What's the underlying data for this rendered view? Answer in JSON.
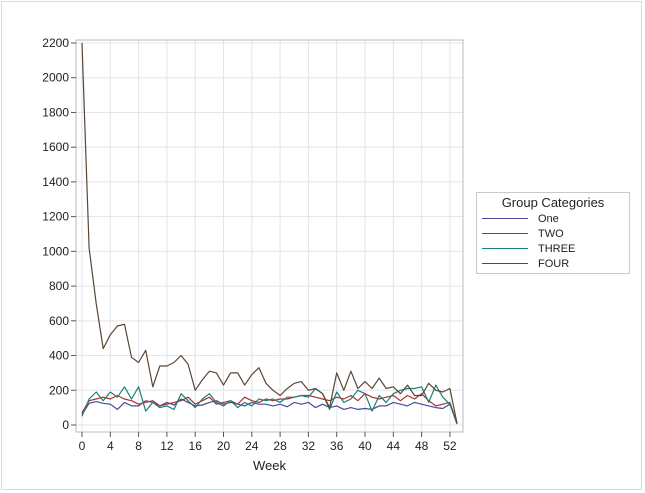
{
  "chart_data": {
    "type": "line",
    "xlabel": "Week",
    "ylabel": "",
    "xlim": [
      0,
      53
    ],
    "ylim": [
      0,
      2200
    ],
    "xticks": [
      0,
      4,
      8,
      12,
      16,
      20,
      24,
      28,
      32,
      36,
      40,
      44,
      48,
      52
    ],
    "yticks": [
      0,
      200,
      400,
      600,
      800,
      1000,
      1200,
      1400,
      1600,
      1800,
      2000,
      2200
    ],
    "grid": true,
    "legend": {
      "title": "Group Categories",
      "position": "right"
    },
    "x": [
      0,
      1,
      2,
      3,
      4,
      5,
      6,
      7,
      8,
      9,
      10,
      11,
      12,
      13,
      14,
      15,
      16,
      17,
      18,
      19,
      20,
      21,
      22,
      23,
      24,
      25,
      26,
      27,
      28,
      29,
      30,
      31,
      32,
      33,
      34,
      35,
      36,
      37,
      38,
      39,
      40,
      41,
      42,
      43,
      44,
      45,
      46,
      47,
      48,
      49,
      50,
      51,
      52,
      53
    ],
    "series": [
      {
        "name": "One",
        "color": "#4a4a9a",
        "values": [
          60,
          125,
          135,
          125,
          120,
          90,
          130,
          110,
          110,
          140,
          130,
          110,
          130,
          115,
          150,
          130,
          110,
          115,
          130,
          140,
          120,
          130,
          120,
          110,
          130,
          120,
          120,
          110,
          120,
          105,
          130,
          120,
          130,
          100,
          120,
          100,
          110,
          90,
          100,
          90,
          95,
          90,
          110,
          110,
          130,
          120,
          110,
          130,
          120,
          110,
          100,
          95,
          120,
          5
        ]
      },
      {
        "name": "TWO",
        "color": "#a83232",
        "values": [
          70,
          140,
          150,
          160,
          150,
          170,
          150,
          140,
          120,
          130,
          140,
          110,
          120,
          130,
          140,
          160,
          120,
          140,
          160,
          120,
          130,
          140,
          120,
          160,
          140,
          130,
          150,
          140,
          150,
          150,
          160,
          170,
          170,
          160,
          150,
          140,
          160,
          150,
          170,
          140,
          180,
          160,
          150,
          160,
          170,
          140,
          170,
          150,
          180,
          140,
          110,
          120,
          130,
          10
        ]
      },
      {
        "name": "THREE",
        "color": "#1f7f73",
        "values": [
          50,
          150,
          190,
          140,
          190,
          160,
          220,
          150,
          220,
          80,
          130,
          100,
          110,
          90,
          180,
          140,
          100,
          150,
          180,
          130,
          110,
          140,
          100,
          130,
          110,
          150,
          140,
          150,
          130,
          160,
          160,
          170,
          160,
          210,
          180,
          90,
          190,
          130,
          150,
          200,
          180,
          80,
          170,
          130,
          180,
          200,
          210,
          210,
          220,
          130,
          230,
          160,
          120,
          10
        ]
      },
      {
        "name": "FOUR",
        "color": "#5a4636",
        "values": [
          2200,
          1020,
          700,
          440,
          520,
          570,
          580,
          390,
          360,
          430,
          220,
          340,
          340,
          360,
          400,
          350,
          200,
          260,
          310,
          300,
          230,
          300,
          300,
          230,
          290,
          330,
          240,
          200,
          170,
          210,
          240,
          250,
          200,
          210,
          180,
          100,
          300,
          200,
          310,
          210,
          250,
          210,
          270,
          210,
          220,
          180,
          230,
          170,
          170,
          240,
          200,
          190,
          210,
          10
        ]
      }
    ]
  }
}
